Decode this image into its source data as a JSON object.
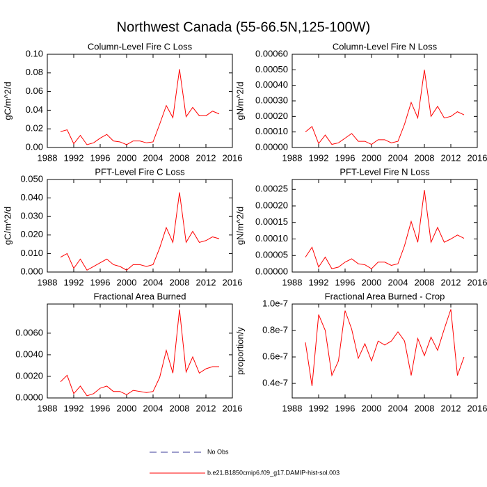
{
  "title": "Northwest Canada (55-66.5N,125-100W)",
  "legend": [
    {
      "name": "No Obs",
      "color": "#3b3b9a",
      "dash": true
    },
    {
      "name": "b.e21.B1850cmip6.f09_g17.DAMIP-hist-sol.003",
      "color": "#ff0000",
      "dash": false
    }
  ],
  "chart_data": [
    {
      "type": "line",
      "title": "Column-Level Fire C Loss",
      "y_label": "gC/m^2/d",
      "color": "#ff0000",
      "x": [
        1990,
        1991,
        1992,
        1993,
        1994,
        1995,
        1996,
        1997,
        1998,
        1999,
        2000,
        2001,
        2002,
        2003,
        2004,
        2005,
        2006,
        2007,
        2008,
        2009,
        2010,
        2011,
        2012,
        2013,
        2014
      ],
      "values": [
        0.017,
        0.019,
        0.004,
        0.013,
        0.003,
        0.005,
        0.01,
        0.014,
        0.007,
        0.006,
        0.003,
        0.007,
        0.007,
        0.005,
        0.006,
        0.025,
        0.045,
        0.032,
        0.084,
        0.033,
        0.043,
        0.034,
        0.034,
        0.039,
        0.036
      ],
      "xlim": [
        1988,
        2016
      ],
      "xticks": [
        1988,
        1992,
        1996,
        2000,
        2004,
        2008,
        2012,
        2016
      ],
      "ylim": [
        0,
        0.1
      ],
      "yticks": [
        {
          "value": 0,
          "label": "0.00"
        },
        0.02,
        0.04,
        0.06,
        0.08,
        {
          "value": 0.1,
          "label": "0.10"
        }
      ]
    },
    {
      "type": "line",
      "title": "Column-Level Fire N Loss",
      "y_label": "gN/m^2/d",
      "color": "#ff0000",
      "x": [
        1990,
        1991,
        1992,
        1993,
        1994,
        1995,
        1996,
        1997,
        1998,
        1999,
        2000,
        2001,
        2002,
        2003,
        2004,
        2005,
        2006,
        2007,
        2008,
        2009,
        2010,
        2011,
        2012,
        2013,
        2014
      ],
      "values": [
        0.0001,
        0.000135,
        2.5e-05,
        8e-05,
        2e-05,
        3e-05,
        6e-05,
        9e-05,
        4e-05,
        4e-05,
        2e-05,
        5e-05,
        5e-05,
        3e-05,
        4e-05,
        0.00015,
        0.00029,
        0.00019,
        0.0005,
        0.0002,
        0.000265,
        0.00019,
        0.0002,
        0.00023,
        0.00021
      ],
      "xlim": [
        1988,
        2016
      ],
      "xticks": [
        1988,
        1992,
        1996,
        2000,
        2004,
        2008,
        2012,
        2016
      ],
      "ylim": [
        0,
        0.0006
      ],
      "yticks": [
        {
          "value": 0,
          "label": "0.00000"
        },
        {
          "value": 0.0001,
          "label": "0.00010"
        },
        {
          "value": 0.0002,
          "label": "0.00020"
        },
        {
          "value": 0.0003,
          "label": "0.00030"
        },
        {
          "value": 0.0004,
          "label": "0.00040"
        },
        {
          "value": 0.0005,
          "label": "0.00050"
        },
        {
          "value": 0.0006,
          "label": "0.00060"
        }
      ]
    },
    {
      "type": "line",
      "title": "PFT-Level Fire C Loss",
      "y_label": "gC/m^2/d",
      "color": "#ff0000",
      "x": [
        1990,
        1991,
        1992,
        1993,
        1994,
        1995,
        1996,
        1997,
        1998,
        1999,
        2000,
        2001,
        2002,
        2003,
        2004,
        2005,
        2006,
        2007,
        2008,
        2009,
        2010,
        2011,
        2012,
        2013,
        2014
      ],
      "values": [
        0.008,
        0.01,
        0.002,
        0.007,
        0.001,
        0.003,
        0.005,
        0.007,
        0.004,
        0.003,
        0.001,
        0.004,
        0.004,
        0.003,
        0.004,
        0.013,
        0.024,
        0.016,
        0.043,
        0.016,
        0.022,
        0.016,
        0.017,
        0.019,
        0.018
      ],
      "xlim": [
        1988,
        2016
      ],
      "xticks": [
        1988,
        1992,
        1996,
        2000,
        2004,
        2008,
        2012,
        2016
      ],
      "ylim": [
        0,
        0.05
      ],
      "yticks": [
        {
          "value": 0,
          "label": "0.000"
        },
        {
          "value": 0.01,
          "label": "0.010"
        },
        {
          "value": 0.02,
          "label": "0.020"
        },
        {
          "value": 0.03,
          "label": "0.030"
        },
        {
          "value": 0.04,
          "label": "0.040"
        },
        {
          "value": 0.05,
          "label": "0.050"
        }
      ]
    },
    {
      "type": "line",
      "title": "PFT-Level Fire N Loss",
      "y_label": "gN/m^2/d",
      "color": "#ff0000",
      "x": [
        1990,
        1991,
        1992,
        1993,
        1994,
        1995,
        1996,
        1997,
        1998,
        1999,
        2000,
        2001,
        2002,
        2003,
        2004,
        2005,
        2006,
        2007,
        2008,
        2009,
        2010,
        2011,
        2012,
        2013,
        2014
      ],
      "values": [
        4.5e-05,
        7.5e-05,
        1.5e-05,
        4.5e-05,
        1e-05,
        1.5e-05,
        3e-05,
        4e-05,
        2.5e-05,
        2.2e-05,
        1e-05,
        3e-05,
        3e-05,
        2e-05,
        2.5e-05,
        8e-05,
        0.000153,
        9e-05,
        0.000248,
        9e-05,
        0.000135,
        9e-05,
        0.0001,
        0.000112,
        0.000102
      ],
      "xlim": [
        1988,
        2016
      ],
      "xticks": [
        1988,
        1992,
        1996,
        2000,
        2004,
        2008,
        2012,
        2016
      ],
      "ylim": [
        0,
        0.00028
      ],
      "yticks": [
        {
          "value": 0,
          "label": "0.00000"
        },
        {
          "value": 5e-05,
          "label": "0.00005"
        },
        {
          "value": 0.0001,
          "label": "0.00010"
        },
        {
          "value": 0.00015,
          "label": "0.00015"
        },
        {
          "value": 0.0002,
          "label": "0.00020"
        },
        {
          "value": 0.00025,
          "label": "0.00025"
        }
      ]
    },
    {
      "type": "line",
      "title": "Fractional Area Burned",
      "y_label": "proportion/y",
      "color": "#ff0000",
      "x": [
        1990,
        1991,
        1992,
        1993,
        1994,
        1995,
        1996,
        1997,
        1998,
        1999,
        2000,
        2001,
        2002,
        2003,
        2004,
        2005,
        2006,
        2007,
        2008,
        2009,
        2010,
        2011,
        2012,
        2013,
        2014
      ],
      "values": [
        0.0015,
        0.0021,
        0.0004,
        0.0011,
        0.0002,
        0.0004,
        0.0009,
        0.0011,
        0.0006,
        0.0006,
        0.0003,
        0.0007,
        0.0006,
        0.0005,
        0.0006,
        0.0019,
        0.0044,
        0.0023,
        0.0082,
        0.0024,
        0.0038,
        0.0023,
        0.0027,
        0.0029,
        0.0029
      ],
      "xlim": [
        1988,
        2016
      ],
      "xticks": [
        1988,
        1992,
        1996,
        2000,
        2004,
        2008,
        2012,
        2016
      ],
      "ylim": [
        0,
        0.0087
      ],
      "yticks": [
        {
          "value": 0,
          "label": "0.0000"
        },
        {
          "value": 0.002,
          "label": "0.0020"
        },
        {
          "value": 0.004,
          "label": "0.0040"
        },
        {
          "value": 0.006,
          "label": "0.0060"
        }
      ]
    },
    {
      "type": "line",
      "title": "Fractional Area Burned - Crop",
      "y_label": "proportion/y",
      "color": "#ff0000",
      "x": [
        1990,
        1991,
        1992,
        1993,
        1994,
        1995,
        1996,
        1997,
        1998,
        1999,
        2000,
        2001,
        2002,
        2003,
        2004,
        2005,
        2006,
        2007,
        2008,
        2009,
        2010,
        2011,
        2012,
        2013,
        2014
      ],
      "values": [
        7.1e-08,
        3.8e-08,
        9.2e-08,
        8e-08,
        4.6e-08,
        5.7e-08,
        9.5e-08,
        8.1e-08,
        5.9e-08,
        7e-08,
        5.7e-08,
        7.2e-08,
        6.9e-08,
        7.2e-08,
        7.9e-08,
        7.2e-08,
        4.6e-08,
        7.4e-08,
        6.1e-08,
        7.5e-08,
        6.5e-08,
        8.1e-08,
        9.6e-08,
        4.6e-08,
        6e-08
      ],
      "xlim": [
        1988,
        2016
      ],
      "xticks": [
        1988,
        1992,
        1996,
        2000,
        2004,
        2008,
        2012,
        2016
      ],
      "ylim": [
        2.9e-08,
        1e-07
      ],
      "yticks": [
        {
          "value": 4e-08,
          "label": "0.4e-7"
        },
        {
          "value": 6e-08,
          "label": "0.6e-7"
        },
        {
          "value": 8e-08,
          "label": "0.8e-7"
        },
        {
          "value": 1e-07,
          "label": "1.0e-7"
        }
      ]
    }
  ]
}
